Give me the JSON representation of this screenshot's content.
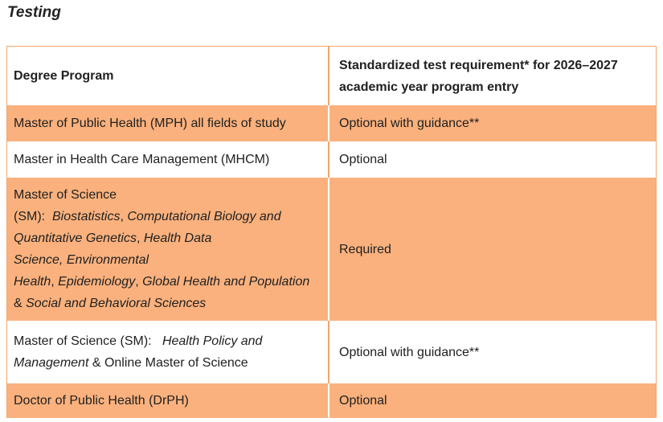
{
  "page": {
    "title": "Testing"
  },
  "colors": {
    "cell_orange": "#FAB17D",
    "grid_orange": "#F2A56C",
    "text": "#212121",
    "white": "#ffffff"
  },
  "table": {
    "rows": [
      {
        "bg": "white",
        "header": true,
        "height": 73,
        "cells": [
          {
            "segments": [
              {
                "t": "Degree Program"
              }
            ]
          },
          {
            "segments": [
              {
                "t": "Standardized test requirement* for 2026–2027"
              },
              {
                "br": true
              },
              {
                "t": "academic year program entry"
              }
            ]
          }
        ]
      },
      {
        "bg": "orange",
        "header": false,
        "height": 45,
        "cells": [
          {
            "segments": [
              {
                "t": "Master of Public Health (MPH) all fields of study"
              }
            ]
          },
          {
            "segments": [
              {
                "t": "Optional with guidance**"
              }
            ]
          }
        ]
      },
      {
        "bg": "white",
        "header": false,
        "height": 45,
        "cells": [
          {
            "segments": [
              {
                "t": "Master in Health Care Management (MHCM)"
              }
            ]
          },
          {
            "segments": [
              {
                "t": "Optional"
              }
            ]
          }
        ]
      },
      {
        "bg": "orange",
        "header": false,
        "height": 175,
        "cells": [
          {
            "segments": [
              {
                "t": "Master of Science"
              },
              {
                "br": true
              },
              {
                "t": "(SM):  "
              },
              {
                "t": "Biostatistics",
                "i": true
              },
              {
                "t": ", "
              },
              {
                "t": "Computational Biology and",
                "i": true
              },
              {
                "br": true
              },
              {
                "t": "Quantitative Genetics",
                "i": true
              },
              {
                "t": ", "
              },
              {
                "t": "Health Data",
                "i": true
              },
              {
                "br": true
              },
              {
                "t": "Science, Environmental",
                "i": true
              },
              {
                "br": true
              },
              {
                "t": "Health",
                "i": true
              },
              {
                "t": ", "
              },
              {
                "t": "Epidemiology",
                "i": true
              },
              {
                "t": ", "
              },
              {
                "t": "Global Health and Population",
                "i": true
              },
              {
                "br": true
              },
              {
                "t": "& "
              },
              {
                "t": "Social and Behavioral Sciences",
                "i": true
              }
            ]
          },
          {
            "segments": [
              {
                "t": "Required"
              }
            ]
          }
        ]
      },
      {
        "bg": "white",
        "header": false,
        "height": 78,
        "cells": [
          {
            "segments": [
              {
                "t": "Master of Science (SM):   "
              },
              {
                "t": "Health Policy and",
                "i": true
              },
              {
                "br": true
              },
              {
                "t": "Management",
                "i": true
              },
              {
                "t": " & Online Master of Science"
              }
            ]
          },
          {
            "segments": [
              {
                "t": "Optional with guidance**"
              }
            ]
          }
        ]
      },
      {
        "bg": "orange",
        "header": false,
        "height": 40,
        "cells": [
          {
            "segments": [
              {
                "t": "Doctor of Public Health (DrPH)"
              }
            ]
          },
          {
            "segments": [
              {
                "t": "Optional"
              }
            ]
          }
        ]
      }
    ]
  }
}
